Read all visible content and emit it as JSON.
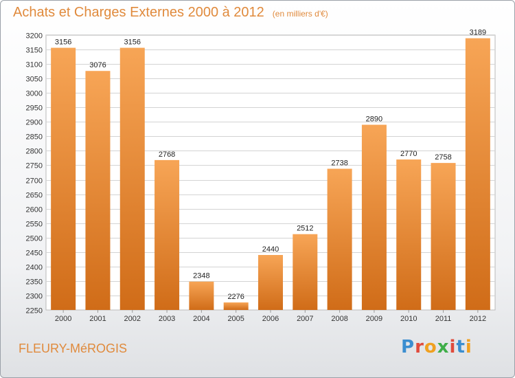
{
  "title": "Achats et Charges Externes 2000 à 2012",
  "unit": "(en milliers d'€)",
  "commune": "FLEURY-MéROGIS",
  "logo": {
    "letters": [
      "P",
      "r",
      "o",
      "x",
      "i",
      "t",
      "i"
    ],
    "colors": [
      "#3b8ed0",
      "#e04b3c",
      "#f0a020",
      "#3fae49",
      "#e04b3c",
      "#3b8ed0",
      "#f0a020"
    ]
  },
  "colors": {
    "accent": "#e08a3c",
    "bar_light": "#f7a556",
    "bar_dark": "#d06c18",
    "grid": "#d3d3d3"
  },
  "chart_data": {
    "type": "bar",
    "categories": [
      "2000",
      "2001",
      "2002",
      "2003",
      "2004",
      "2005",
      "2006",
      "2007",
      "2008",
      "2009",
      "2010",
      "2011",
      "2012"
    ],
    "values": [
      3156,
      3076,
      3156,
      2768,
      2348,
      2276,
      2440,
      2512,
      2738,
      2890,
      2770,
      2758,
      3189
    ],
    "ylim": [
      2250,
      3200
    ],
    "ytick_step": 50,
    "grid": true,
    "data_labels": true
  }
}
